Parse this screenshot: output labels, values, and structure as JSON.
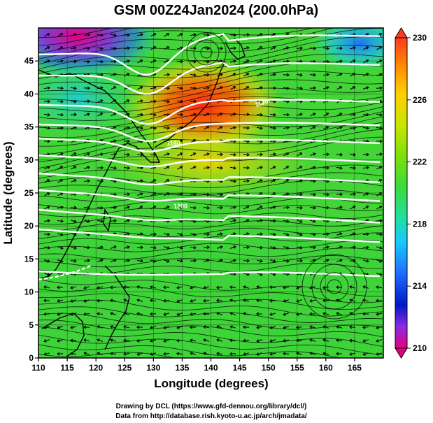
{
  "title": "GSM 00Z24Jan2024 (200.0hPa)",
  "x_axis": {
    "label": "Longitude (degrees)",
    "range": [
      110,
      170
    ],
    "ticks": [
      "110",
      "115",
      "120",
      "125",
      "130",
      "135",
      "140",
      "145",
      "150",
      "155",
      "160",
      "165"
    ],
    "tick_values": [
      110,
      115,
      120,
      125,
      130,
      135,
      140,
      145,
      150,
      155,
      160,
      165
    ]
  },
  "y_axis": {
    "label": "Latitude  (degrees)",
    "range": [
      0,
      50
    ],
    "ticks": [
      "0",
      "5",
      "10",
      "15",
      "20",
      "25",
      "30",
      "35",
      "40",
      "45"
    ],
    "tick_values": [
      0,
      5,
      10,
      15,
      20,
      25,
      30,
      35,
      40,
      45
    ]
  },
  "colorbar": {
    "range": [
      210,
      230
    ],
    "labels": [
      "230",
      "226",
      "222",
      "218",
      "214",
      "210"
    ],
    "label_values": [
      230,
      226,
      222,
      218,
      214,
      210
    ],
    "colors": [
      "#e6007e",
      "#8a2be2",
      "#0018c8",
      "#1e6cff",
      "#18c8ff",
      "#20e0a0",
      "#3adc3a",
      "#7ee00a",
      "#c8e600",
      "#ffd000",
      "#ff8a00",
      "#ff3a1e"
    ]
  },
  "contour_labels": [
    "1160",
    "1120",
    "1200"
  ],
  "credits": [
    "Drawing by DCL (https://www.gfd-dennou.org/library/dcl/)",
    "Data from http://database.rish.kyoto-u.ac.jp/arch/jmadata/"
  ],
  "colors": {
    "contour": "#ffffff",
    "grid": "#000000",
    "coast": "#000000",
    "warm_core": "#ff3a1e",
    "cold_core": "#e6007e"
  }
}
